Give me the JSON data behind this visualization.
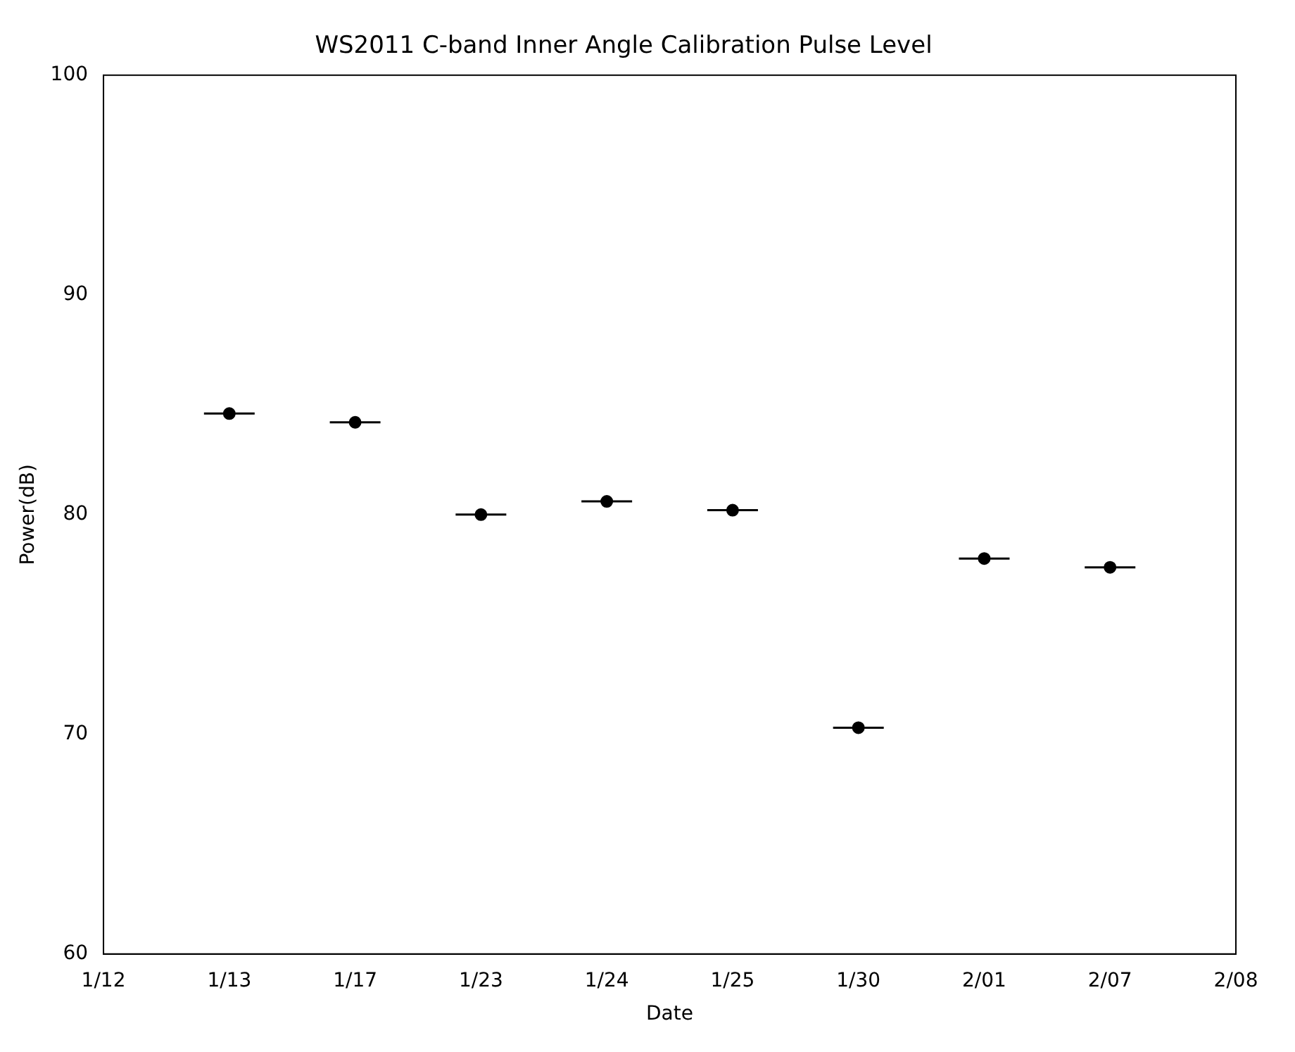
{
  "chart_data": {
    "type": "scatter",
    "title": "WS2011 C-band Inner Angle Calibration Pulse Level",
    "xlabel": "Date",
    "ylabel": "Power(dB)",
    "categories": [
      "1/12",
      "1/13",
      "1/17",
      "1/23",
      "1/24",
      "1/25",
      "1/30",
      "2/01",
      "2/07",
      "2/08"
    ],
    "values": [
      null,
      84.6,
      84.2,
      80.0,
      80.6,
      80.2,
      70.3,
      78.0,
      77.6,
      null
    ],
    "errors": [
      null,
      0,
      0,
      0,
      0,
      0,
      0,
      0,
      0,
      null
    ],
    "color": "#000000",
    "marker": "circle",
    "ylim": [
      60,
      100
    ],
    "yticks": [
      60,
      70,
      80,
      90,
      100
    ],
    "grid": false,
    "legend": false
  }
}
